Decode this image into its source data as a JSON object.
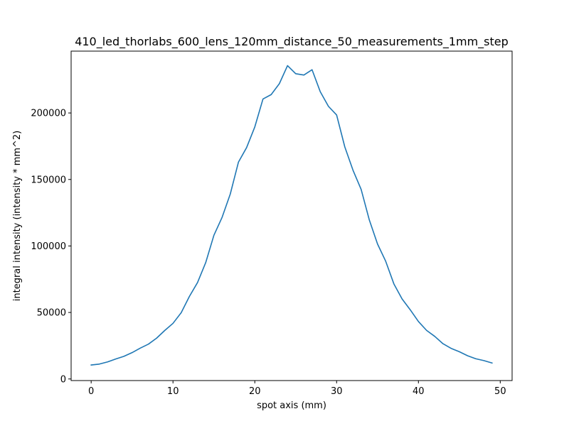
{
  "chart_data": {
    "type": "line",
    "title": "410_led_thorlabs_600_lens_120mm_distance_50_measurements_1mm_step",
    "xlabel": "spot axis (mm)",
    "ylabel": "integral intensity (intensity * mm^2)",
    "xlim": [
      -2.45,
      51.45
    ],
    "ylim": [
      -1200,
      246500
    ],
    "x_ticks": [
      0,
      10,
      20,
      30,
      40,
      50
    ],
    "y_ticks": [
      0,
      50000,
      100000,
      150000,
      200000
    ],
    "grid": false,
    "line_color": "#1f77b4",
    "series": [
      {
        "x": [
          0,
          1,
          2,
          3,
          4,
          5,
          6,
          7,
          8,
          9,
          10,
          11,
          12,
          13,
          14,
          15,
          16,
          17,
          18,
          19,
          20,
          21,
          22,
          23,
          24,
          25,
          26,
          27,
          28,
          29,
          30,
          31,
          32,
          33,
          34,
          35,
          36,
          37,
          38,
          39,
          40,
          41,
          42,
          43,
          44,
          45,
          46,
          47,
          48,
          49
        ],
        "values": [
          10500,
          11200,
          12800,
          15000,
          17000,
          19800,
          23200,
          26200,
          30700,
          36500,
          41800,
          49800,
          62000,
          72500,
          87500,
          108000,
          121500,
          139000,
          163000,
          174000,
          189500,
          210500,
          213800,
          222000,
          235600,
          229500,
          228500,
          232500,
          216000,
          205000,
          198500,
          174500,
          157000,
          142500,
          119500,
          101500,
          88500,
          71500,
          60200,
          52000,
          43200,
          36500,
          32000,
          26500,
          23000,
          20500,
          17500,
          15200,
          13800,
          12000
        ]
      }
    ]
  }
}
